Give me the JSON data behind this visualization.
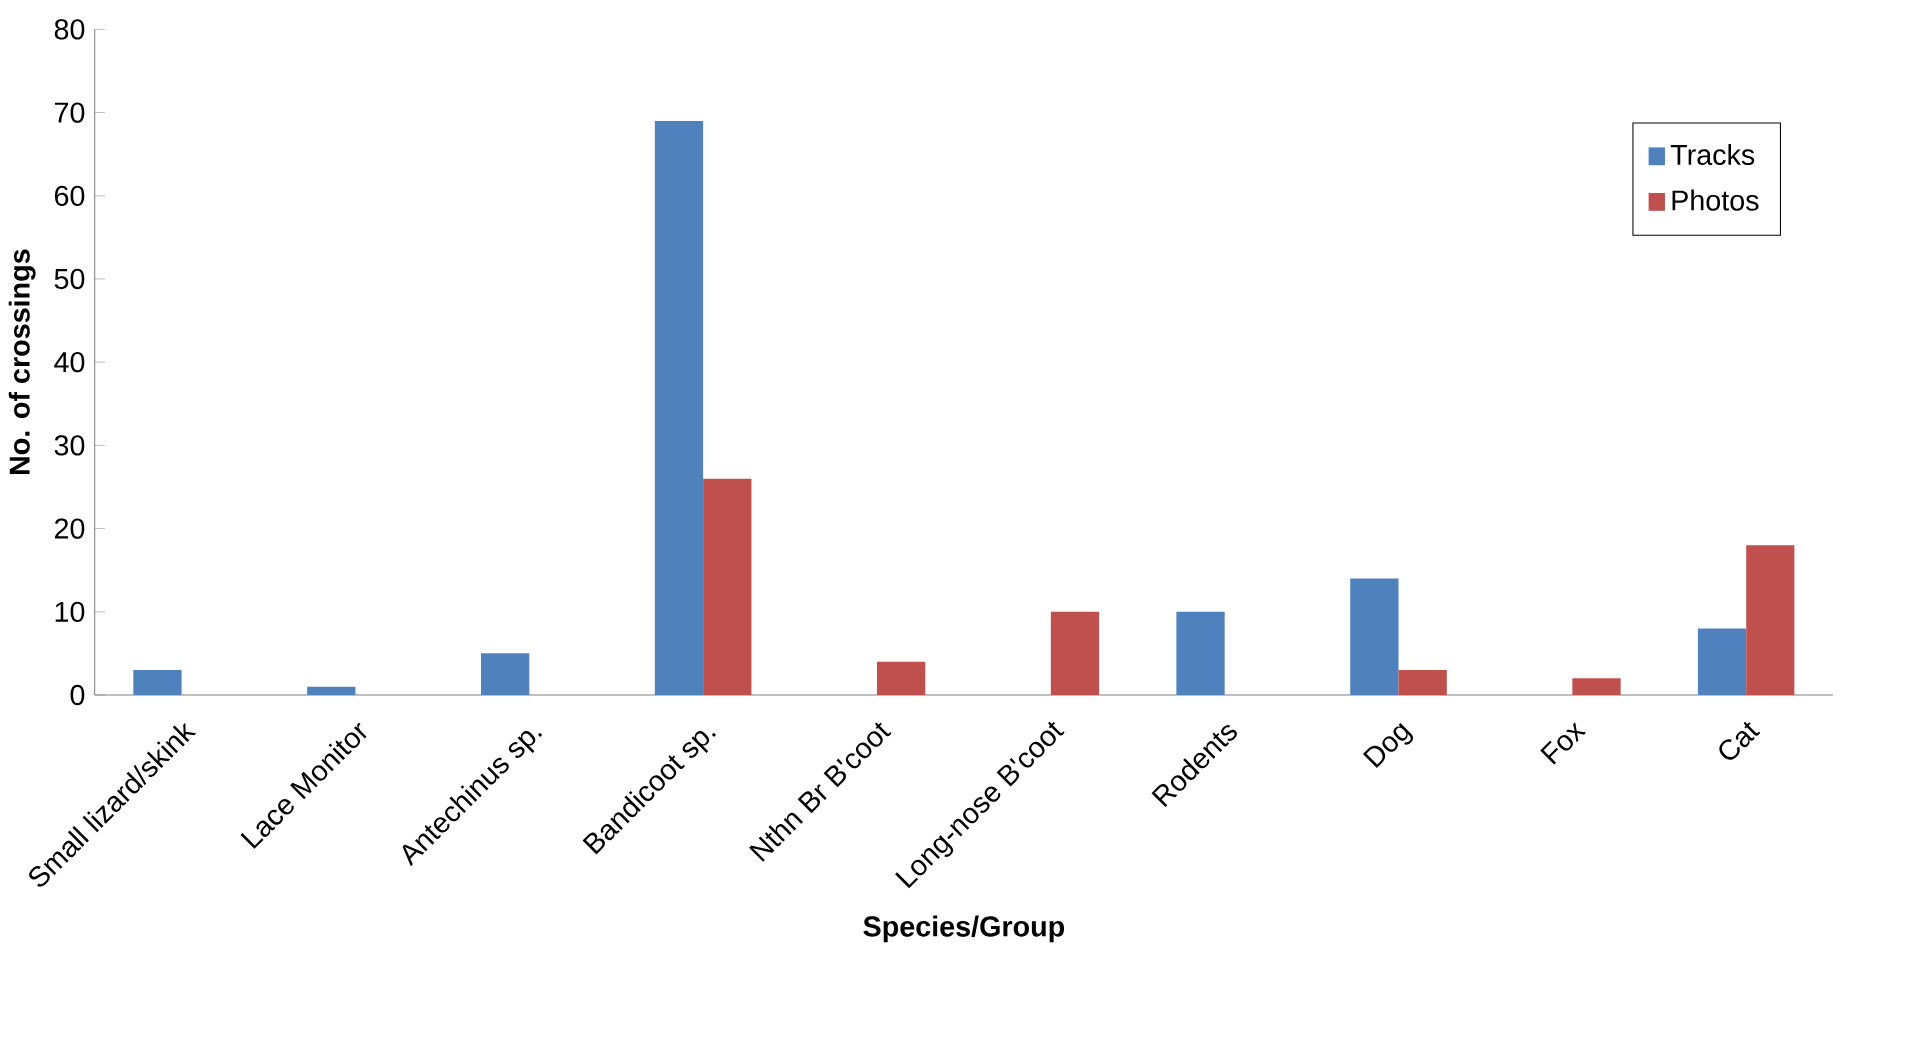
{
  "chart_data": {
    "type": "bar",
    "xlabel": "Species/Group",
    "ylabel": "No. of crossings",
    "categories": [
      "Small lizard/skink",
      "Lace Monitor",
      "Antechinus sp.",
      "Bandicoot sp.",
      "Nthn Br B'coot",
      "Long-nose B'coot",
      "Rodents",
      "Dog",
      "Fox",
      "Cat"
    ],
    "series": [
      {
        "name": "Tracks",
        "color": "#4f81bd",
        "values": [
          3,
          1,
          5,
          69,
          0,
          0,
          10,
          14,
          0,
          8
        ]
      },
      {
        "name": "Photos",
        "color": "#c0504d",
        "values": [
          0,
          0,
          0,
          26,
          4,
          10,
          0,
          3,
          2,
          18
        ]
      }
    ],
    "ylim": [
      0,
      80
    ],
    "yticks": [
      0,
      10,
      20,
      30,
      40,
      50,
      60,
      70,
      80
    ],
    "grid": false,
    "legend": "top right"
  }
}
